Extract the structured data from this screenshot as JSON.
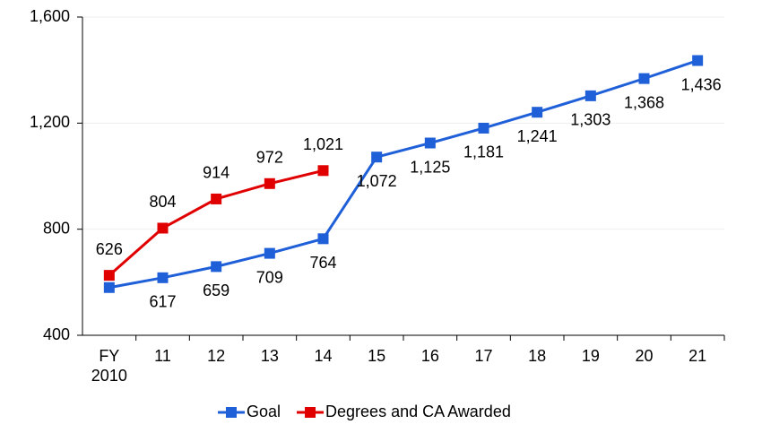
{
  "chart_data": {
    "type": "line",
    "categories": [
      "FY 2010",
      "11",
      "12",
      "13",
      "14",
      "15",
      "16",
      "17",
      "18",
      "19",
      "20",
      "21"
    ],
    "series": [
      {
        "name": "Goal",
        "color": "#1f5fd8",
        "values": [
          580,
          617,
          659,
          709,
          764,
          1072,
          1125,
          1181,
          1241,
          1303,
          1368,
          1436
        ],
        "value_labels": [
          null,
          "617",
          "659",
          "709",
          "764",
          "1,072",
          "1,125",
          "1,181",
          "1,241",
          "1,303",
          "1,368",
          "1,436"
        ]
      },
      {
        "name": "Degrees and CA Awarded",
        "color": "#e00000",
        "values": [
          626,
          804,
          914,
          972,
          1021,
          null,
          null,
          null,
          null,
          null,
          null,
          null
        ],
        "value_labels": [
          "626",
          "804",
          "914",
          "972",
          "1,021",
          null,
          null,
          null,
          null,
          null,
          null,
          null
        ]
      }
    ],
    "ylim": [
      400,
      1600
    ],
    "yticks": [
      {
        "value": 400,
        "label": "400"
      },
      {
        "value": 800,
        "label": "800"
      },
      {
        "value": 1200,
        "label": "1,200"
      },
      {
        "value": 1600,
        "label": "1,600"
      }
    ],
    "grid": true,
    "legend": "bottom"
  }
}
